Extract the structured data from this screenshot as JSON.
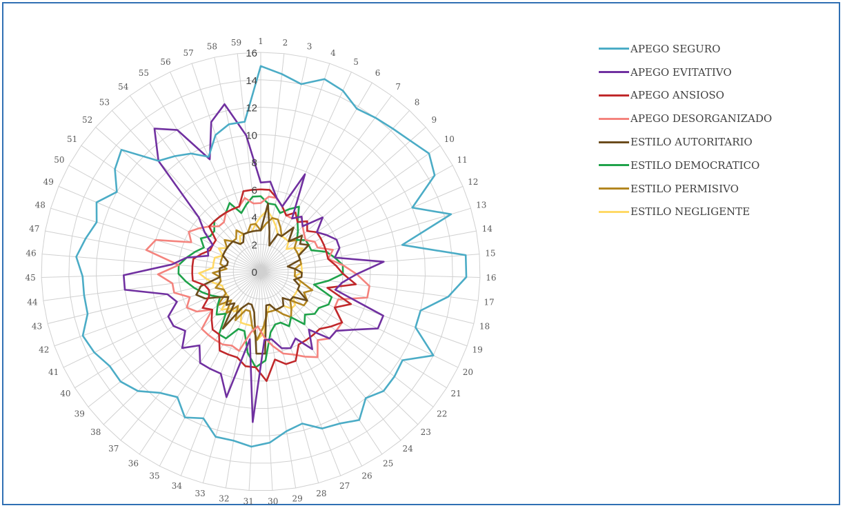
{
  "chart_data": {
    "type": "radar",
    "categories": [
      "1",
      "2",
      "3",
      "4",
      "5",
      "6",
      "7",
      "8",
      "9",
      "10",
      "11",
      "12",
      "13",
      "14",
      "15",
      "16",
      "17",
      "18",
      "19",
      "20",
      "21",
      "22",
      "23",
      "24",
      "25",
      "26",
      "27",
      "28",
      "29",
      "30",
      "31",
      "32",
      "33",
      "34",
      "35",
      "36",
      "37",
      "38",
      "39",
      "40",
      "41",
      "42",
      "43",
      "44",
      "45",
      "46",
      "47",
      "48",
      "49",
      "50",
      "51",
      "52",
      "53",
      "54",
      "55",
      "56",
      "57",
      "58",
      "59"
    ],
    "rlim": [
      0,
      16
    ],
    "ticks": [
      0,
      2,
      4,
      6,
      8,
      10,
      12,
      14,
      16
    ],
    "grid": true,
    "legend_position": "top-right",
    "series": [
      {
        "name": "APEGO SEGURO",
        "color": "#4bacc6",
        "values": [
          15,
          14.5,
          14,
          14.8,
          14.5,
          13.8,
          14,
          14.2,
          14.5,
          15,
          14.5,
          12,
          14.5,
          10.5,
          15,
          15,
          13.8,
          12,
          12,
          14,
          12.2,
          12.4,
          12.5,
          12,
          13,
          12.5,
          12.3,
          11.5,
          11.8,
          12.5,
          12.8,
          12.5,
          12.5,
          11.5,
          12,
          11,
          11.5,
          12.5,
          13,
          13,
          13.5,
          13.8,
          13,
          13,
          13,
          13.5,
          13,
          12.5,
          13,
          12,
          13,
          13.5,
          11,
          10.5,
          10,
          9.2,
          10.5,
          11,
          11
        ]
      },
      {
        "name": "APEGO EVITATIVO",
        "color": "#7030a0",
        "values": [
          6.5,
          6.6,
          5.5,
          5,
          7.8,
          4.5,
          5,
          4.5,
          6,
          5,
          5.5,
          6,
          6,
          5.5,
          9,
          7,
          6,
          5.6,
          9.5,
          9.5,
          8,
          7,
          7,
          5.5,
          6.8,
          5.5,
          6,
          5.8,
          5,
          5,
          11,
          5,
          9.5,
          8,
          8,
          8,
          7,
          8,
          7,
          7.5,
          7.5,
          6.5,
          7,
          10,
          10,
          6.5,
          5.5,
          4,
          4.2,
          4,
          5,
          6,
          11,
          13,
          12,
          9,
          11.5,
          12.5,
          10
        ]
      },
      {
        "name": "APEGO ANSIOSO",
        "color": "#c0282b",
        "values": [
          6,
          6,
          5.5,
          5,
          4.5,
          5,
          4.5,
          5,
          4.5,
          5,
          5,
          5,
          5,
          5,
          5.5,
          6,
          7,
          5,
          7,
          6,
          7,
          6.5,
          6,
          6,
          6,
          6,
          7,
          7,
          6.5,
          8,
          7,
          7,
          6.5,
          6.5,
          6.5,
          5.5,
          5.5,
          5,
          4.5,
          5,
          4.2,
          4,
          4.2,
          5,
          5,
          5,
          5,
          4.5,
          4,
          4,
          4,
          5,
          5,
          5,
          5,
          5,
          5,
          6,
          6
        ]
      },
      {
        "name": "APEGO DESORGANIZADO",
        "color": "#f4837d",
        "values": [
          5,
          5.5,
          5.5,
          5,
          4.5,
          4.5,
          5,
          4.5,
          4.2,
          4,
          4.5,
          4.5,
          5.5,
          5,
          6,
          7,
          8,
          8,
          6,
          6,
          7,
          7,
          7,
          6.5,
          7.5,
          7,
          6.5,
          6.2,
          5.5,
          4.8,
          4,
          4.5,
          6,
          5.8,
          6,
          6,
          6,
          6,
          4.5,
          5.5,
          6,
          5.5,
          6.5,
          6.5,
          7.5,
          6,
          8.5,
          8,
          5.5,
          6,
          5.5,
          5,
          4.5,
          4.5,
          5,
          5,
          5,
          5.5,
          5
        ]
      },
      {
        "name": "ESTILO AUTORITARIO",
        "color": "#6b4c1c",
        "values": [
          3,
          5,
          3,
          2,
          3,
          3,
          4,
          3,
          4,
          3.5,
          4,
          3,
          3,
          2,
          2.5,
          3,
          3,
          2.5,
          3,
          3,
          4,
          3,
          3,
          2.5,
          3,
          3,
          3,
          2.5,
          2.5,
          6,
          6,
          3,
          2.5,
          2.5,
          3,
          5,
          3,
          3.5,
          3,
          3.5,
          4.5,
          5,
          4.5,
          3,
          3,
          3,
          2.5,
          2.5,
          3,
          3,
          3,
          3,
          3,
          2.5,
          2.5,
          3,
          3,
          3,
          3
        ]
      },
      {
        "name": "ESTILO DEMOCRATICO",
        "color": "#1fa24a",
        "values": [
          5.5,
          5,
          5,
          4.5,
          5,
          5.5,
          4.5,
          4,
          3.5,
          4,
          4,
          4,
          5,
          5.5,
          6,
          6,
          5,
          4,
          5.5,
          5.5,
          5,
          5,
          4.5,
          5,
          4,
          4.5,
          4,
          4,
          4.5,
          6.5,
          7,
          6,
          4.5,
          4.5,
          5.5,
          5.5,
          4,
          4.5,
          4,
          3.5,
          4,
          4.5,
          5,
          5.5,
          6,
          6,
          5.5,
          5,
          4.5,
          5,
          4.5,
          4.5,
          5,
          5,
          5,
          5.5,
          4.5,
          5,
          5.5
        ]
      },
      {
        "name": "ESTILO PERMISIVO",
        "color": "#b38620",
        "values": [
          3,
          3.5,
          4,
          4,
          3.5,
          3,
          4,
          3,
          3.5,
          3,
          3,
          3,
          3,
          3,
          2.5,
          2.5,
          2.5,
          3,
          4,
          3.5,
          4,
          4,
          3,
          3.5,
          4,
          3.5,
          3,
          3,
          3,
          4,
          5,
          4,
          3,
          3,
          4,
          3,
          4,
          3,
          4,
          3,
          3,
          3.5,
          3,
          3,
          3.5,
          2.5,
          3,
          3,
          3,
          3,
          3,
          3.5,
          3,
          3,
          3.5,
          3,
          3,
          3.5,
          3.5
        ]
      },
      {
        "name": "ESTILO NEGLIGENTE",
        "color": "#ffd966",
        "values": [
          4,
          4.5,
          4,
          3.5,
          3,
          3,
          3,
          3,
          2.5,
          3,
          3.5,
          3,
          3,
          3,
          3,
          3,
          2.5,
          3,
          3,
          3,
          3,
          3,
          3.5,
          3.5,
          3,
          3,
          3,
          2.5,
          3,
          4.5,
          5,
          4,
          4,
          4,
          3,
          3.5,
          3.5,
          4,
          3,
          3,
          3,
          3,
          3.5,
          4,
          4.5,
          3.5,
          3.5,
          3.5,
          3,
          3.5,
          3,
          3,
          3,
          2.5,
          3,
          3,
          3,
          3,
          3.5
        ]
      }
    ]
  }
}
